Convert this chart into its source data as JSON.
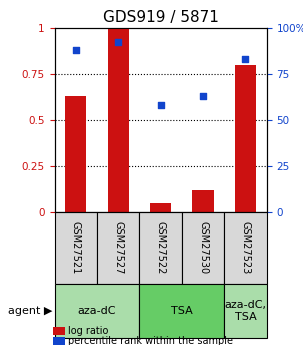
{
  "title": "GDS919 / 5871",
  "samples": [
    "GSM27521",
    "GSM27527",
    "GSM27522",
    "GSM27530",
    "GSM27523"
  ],
  "log_ratio": [
    0.63,
    1.0,
    0.05,
    0.12,
    0.8
  ],
  "percentile_rank": [
    0.88,
    0.92,
    0.58,
    0.63,
    0.83
  ],
  "bar_color": "#cc1111",
  "scatter_color": "#1144cc",
  "ylim": [
    0,
    1
  ],
  "yticks": [
    0,
    0.25,
    0.5,
    0.75,
    1.0
  ],
  "ytick_labels_left": [
    "0",
    "0.25",
    "0.5",
    "0.75",
    "1"
  ],
  "ytick_labels_right": [
    "0",
    "25",
    "50",
    "75",
    "100%"
  ],
  "groups": [
    {
      "label": "aza-dC",
      "start": 0,
      "end": 2,
      "color": "#aaddaa"
    },
    {
      "label": "TSA",
      "start": 2,
      "end": 4,
      "color": "#66cc66"
    },
    {
      "label": "aza-dC,\nTSA",
      "start": 4,
      "end": 5,
      "color": "#aaddaa"
    }
  ],
  "agent_label": "agent",
  "legend_bar_label": "log ratio",
  "legend_scatter_label": "percentile rank within the sample",
  "title_fontsize": 11,
  "tick_fontsize": 7.5,
  "label_fontsize": 8,
  "sample_label_fontsize": 7,
  "group_label_fontsize": 8
}
